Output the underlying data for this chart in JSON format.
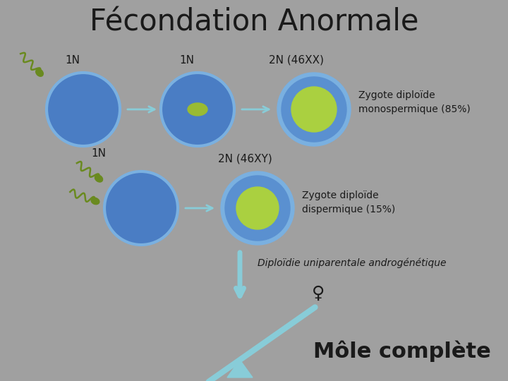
{
  "title": "Fécondation Anormale",
  "bg_color": "#a0a0a0",
  "text_color": "#1a1a1a",
  "title_fontsize": 30,
  "cell_blue_dark": "#4a7dc4",
  "cell_blue_mid": "#5a90d0",
  "cell_blue_light": "#7ab0e0",
  "nucleus_red": "#cc2222",
  "nucleus_purple": "#9966aa",
  "nucleus_green_small": "#99bb33",
  "nucleus_green_large": "#aad040",
  "arrow_color": "#88ccd8",
  "sperm_color": "#6a8a20",
  "label_1n_1": "1N",
  "label_1n_2": "1N",
  "label_2n_xx": "2N (46XX)",
  "label_1n_3": "1N",
  "label_2n_xy": "2N (46XY)",
  "label_mono": "Zygote diploïde\nmonospermique (85%)",
  "label_dis": "Zygote diploïde\ndispermique (15%)",
  "label_diploidie": "Diploïdie uniparentale androgénétique",
  "label_mole": "Môle complète"
}
